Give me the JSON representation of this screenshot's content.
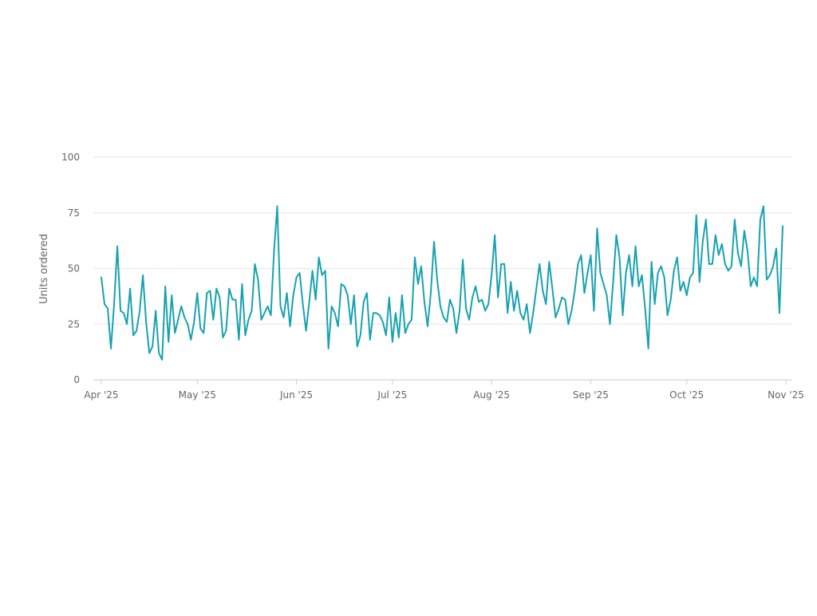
{
  "chart_data": {
    "type": "line",
    "title": "",
    "xlabel": "",
    "ylabel": "Units ordered",
    "ylim": [
      0,
      100
    ],
    "yticks": [
      0,
      25,
      50,
      75,
      100
    ],
    "xlim": [
      "2025-04-01",
      "2025-11-01"
    ],
    "xticks": [
      {
        "date": "2025-04-01",
        "label": "Apr '25"
      },
      {
        "date": "2025-05-01",
        "label": "May '25"
      },
      {
        "date": "2025-06-01",
        "label": "Jun '25"
      },
      {
        "date": "2025-07-01",
        "label": "Jul '25"
      },
      {
        "date": "2025-08-01",
        "label": "Aug '25"
      },
      {
        "date": "2025-09-01",
        "label": "Sep '25"
      },
      {
        "date": "2025-10-01",
        "label": "Oct '25"
      },
      {
        "date": "2025-11-01",
        "label": "Nov '25"
      }
    ],
    "grid": true,
    "legend": "none",
    "line_color": "#17a2b0",
    "series": [
      {
        "start_date": "2025-04-01",
        "values": [
          46,
          34,
          32,
          14,
          34,
          60,
          31,
          30,
          25,
          41,
          20,
          22,
          31,
          47,
          26,
          12,
          15,
          31,
          12,
          9,
          42,
          17,
          38,
          21,
          27,
          33,
          28,
          25,
          18,
          26,
          39,
          23,
          21,
          39,
          40,
          27,
          41,
          37,
          19,
          22,
          41,
          36,
          36,
          18,
          43,
          20,
          27,
          31,
          52,
          45,
          27,
          30,
          33,
          29,
          58,
          78,
          33,
          28,
          39,
          24,
          38,
          46,
          48,
          34,
          22,
          35,
          49,
          36,
          55,
          47,
          49,
          14,
          33,
          30,
          24,
          43,
          42,
          38,
          25,
          38,
          15,
          20,
          35,
          39,
          18,
          30,
          30,
          29,
          26,
          20,
          37,
          17,
          30,
          19,
          38,
          21,
          25,
          27,
          55,
          43,
          51,
          35,
          24,
          39,
          62,
          45,
          33,
          28,
          26,
          36,
          32,
          21,
          31,
          54,
          32,
          27,
          37,
          42,
          35,
          36,
          31,
          34,
          47,
          65,
          37,
          52,
          52,
          30,
          44,
          31,
          40,
          30,
          27,
          34,
          21,
          30,
          41,
          52,
          40,
          34,
          53,
          41,
          28,
          32,
          37,
          36,
          25,
          31,
          40,
          52,
          56,
          39,
          48,
          56,
          31,
          68,
          48,
          43,
          38,
          25,
          44,
          65,
          55,
          29,
          48,
          56,
          42,
          60,
          42,
          47,
          32,
          14,
          53,
          34,
          48,
          51,
          46,
          29,
          36,
          49,
          55,
          40,
          44,
          38,
          46,
          48,
          74,
          44,
          62,
          72,
          52,
          52,
          65,
          56,
          61,
          52,
          49,
          51,
          72,
          57,
          51,
          67,
          58,
          42,
          46,
          42,
          72,
          78,
          45,
          47,
          51,
          59,
          30,
          69
        ]
      }
    ]
  }
}
